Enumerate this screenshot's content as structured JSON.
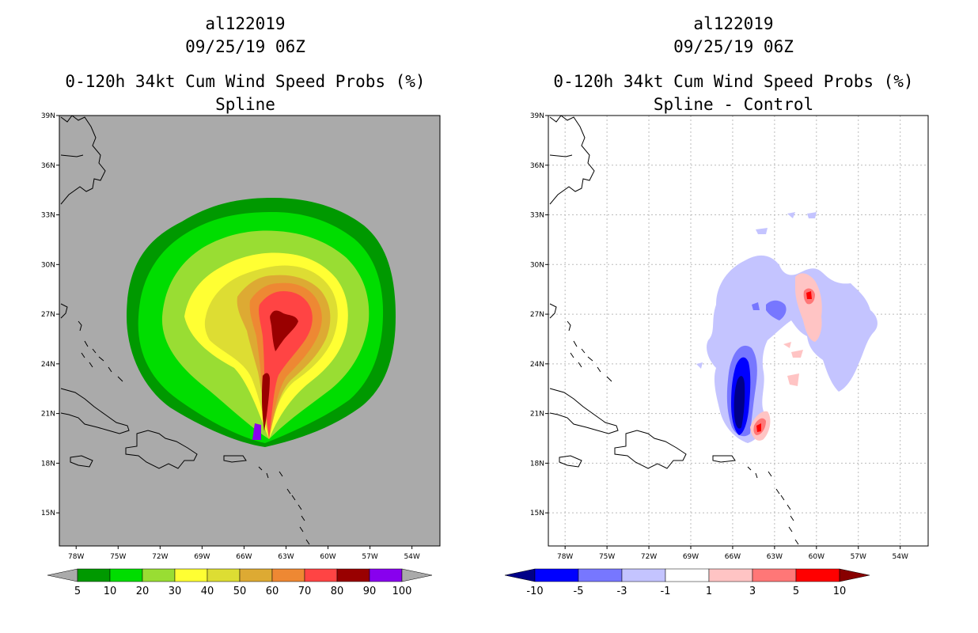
{
  "chart_data": [
    {
      "type": "heatmap",
      "storm_id": "al122019",
      "datetime": "09/25/19 06Z",
      "title": "0-120h 34kt Cum Wind Speed Probs (%)",
      "subtitle": "Spline",
      "x_ticks": [
        "78W",
        "75W",
        "72W",
        "69W",
        "66W",
        "63W",
        "60W",
        "57W",
        "54W"
      ],
      "y_ticks": [
        "39N",
        "36N",
        "33N",
        "30N",
        "27N",
        "24N",
        "21N",
        "18N",
        "15N"
      ],
      "background": "#aaaaaa",
      "grid": false,
      "colorbar": {
        "labels": [
          "5",
          "10",
          "20",
          "30",
          "40",
          "50",
          "60",
          "70",
          "80",
          "90",
          "100"
        ],
        "colors": [
          "#009900",
          "#00dd00",
          "#99dd33",
          "#ffff33",
          "#dddd33",
          "#ddaa33",
          "#ee8833",
          "#ff4444",
          "#990000",
          "#8800ee"
        ],
        "under_color": "#aaaaaa",
        "over_color": "#aaaaaa"
      }
    },
    {
      "type": "heatmap",
      "storm_id": "al122019",
      "datetime": "09/25/19 06Z",
      "title": "0-120h 34kt Cum Wind Speed Probs (%)",
      "subtitle": "Spline - Control",
      "x_ticks": [
        "78W",
        "75W",
        "72W",
        "69W",
        "66W",
        "63W",
        "60W",
        "57W",
        "54W"
      ],
      "y_ticks": [
        "39N",
        "36N",
        "33N",
        "30N",
        "27N",
        "24N",
        "21N",
        "18N",
        "15N"
      ],
      "background": "#ffffff",
      "grid": true,
      "colorbar": {
        "labels": [
          "-10",
          "-5",
          "-3",
          "-1",
          "1",
          "3",
          "5",
          "10"
        ],
        "colors": [
          "#0000ff",
          "#7777ff",
          "#c4c4ff",
          "#ffffff",
          "#ffc4c4",
          "#ff7777",
          "#ff0000"
        ],
        "under_color": "#000088",
        "over_color": "#880000"
      }
    }
  ]
}
